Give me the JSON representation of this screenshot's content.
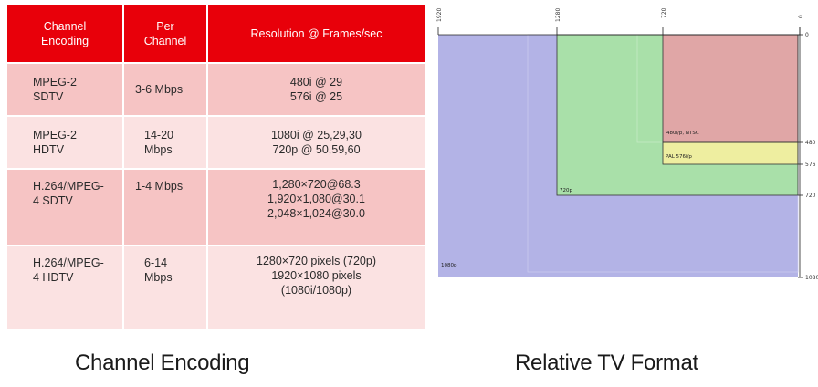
{
  "table": {
    "headers": [
      "Channel\nEncoding",
      "Per\nChannel",
      "Resolution @ Frames/sec"
    ],
    "rows": [
      {
        "encoding": "MPEG-2\nSDTV",
        "per_channel": "3-6 Mbps",
        "resolution": "480i @ 29\n576i @ 25"
      },
      {
        "encoding": "MPEG-2\nHDTV",
        "per_channel": "14-20\nMbps",
        "resolution": "1080i @ 25,29,30\n720p @ 50,59,60"
      },
      {
        "encoding": "H.264/MPEG-\n4 SDTV",
        "per_channel": "1-4 Mbps",
        "resolution": "1,280×720@68.3\n1,920×1,080@30.1\n2,048×1,024@30.0"
      },
      {
        "encoding": "H.264/MPEG-\n4 HDTV",
        "per_channel": "6-14\nMbps",
        "resolution": "1280×720 pixels (720p)\n1920×1080 pixels\n(1080i/1080p)"
      }
    ]
  },
  "captions": {
    "left": "Channel Encoding",
    "right": "Relative TV Format"
  },
  "diagram": {
    "top_ticks": [
      "1920",
      "1280",
      "720",
      "0"
    ],
    "right_ticks": [
      "0",
      "480",
      "576",
      "720",
      "1080"
    ],
    "regions": [
      {
        "label": "1080p",
        "color": "#b3b3e6"
      },
      {
        "label": "720p",
        "color": "#a9e0a9"
      },
      {
        "label": "PAL 576i/p",
        "color": "#eeeea0"
      },
      {
        "label": "480i/p, NTSC",
        "color": "#e0a6a6"
      }
    ]
  }
}
